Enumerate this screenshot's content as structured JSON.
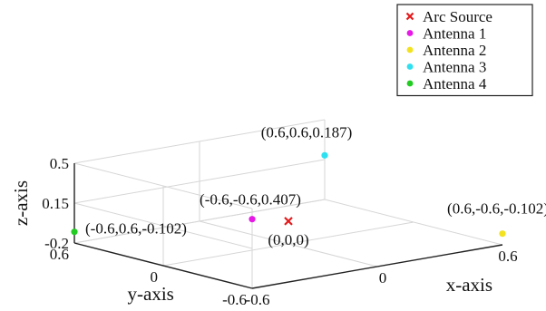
{
  "chart_data": {
    "type": "scatter",
    "projection": "3d",
    "grid": true,
    "legend_placement": "top-right",
    "xlabel": "x-axis",
    "ylabel": "y-axis",
    "zlabel": "z-axis",
    "xlim": [
      -0.6,
      0.6
    ],
    "ylim": [
      -0.6,
      0.6
    ],
    "zlim": [
      -0.2,
      0.5
    ],
    "x_ticks": [
      {
        "v": -0.6,
        "label": "-0.6"
      },
      {
        "v": 0,
        "label": "0"
      },
      {
        "v": 0.6,
        "label": "0.6"
      }
    ],
    "y_ticks": [
      {
        "v": -0.6,
        "label": "-0.6"
      },
      {
        "v": 0,
        "label": "0"
      },
      {
        "v": 0.6,
        "label": "0.6"
      }
    ],
    "z_ticks": [
      {
        "v": -0.2,
        "label": "-0.2"
      },
      {
        "v": 0.15,
        "label": "0.15"
      },
      {
        "v": 0.5,
        "label": "0.5"
      }
    ],
    "series": [
      {
        "name": "Arc Source",
        "marker": "x",
        "color": "#e41a1c",
        "points": [
          {
            "x": 0,
            "y": 0,
            "z": 0,
            "label": "(0,0,0)"
          }
        ]
      },
      {
        "name": "Antenna 1",
        "marker": "dot",
        "color": "#e619e6",
        "points": [
          {
            "x": -0.6,
            "y": -0.6,
            "z": 0.407,
            "label": "(-0.6,-0.6,0.407)"
          }
        ]
      },
      {
        "name": "Antenna 2",
        "marker": "dot",
        "color": "#f2e21f",
        "points": [
          {
            "x": 0.6,
            "y": -0.6,
            "z": -0.102,
            "label": "(0.6,-0.6,-0.102)"
          }
        ]
      },
      {
        "name": "Antenna 3",
        "marker": "dot",
        "color": "#2fe0f0",
        "points": [
          {
            "x": 0.6,
            "y": 0.6,
            "z": 0.187,
            "label": "(0.6,0.6,0.187)"
          }
        ]
      },
      {
        "name": "Antenna 4",
        "marker": "dot",
        "color": "#22cc22",
        "points": [
          {
            "x": -0.6,
            "y": 0.6,
            "z": -0.102,
            "label": "(-0.6,0.6,-0.102)"
          }
        ]
      }
    ]
  }
}
